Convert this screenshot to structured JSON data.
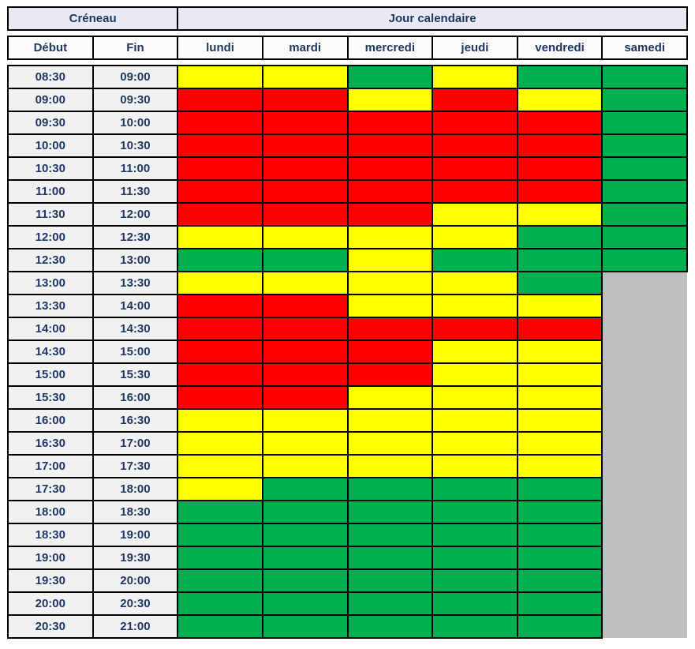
{
  "chart_data": {
    "type": "heatmap",
    "title": "Créneau / Jour calendaire availability grid",
    "header": {
      "creneau": "Créneau",
      "jour_calendaire": "Jour calendaire",
      "debut": "Début",
      "fin": "Fin"
    },
    "columns": [
      "lundi",
      "mardi",
      "mercredi",
      "jeudi",
      "vendredi",
      "samedi"
    ],
    "palette": {
      "red": "#FF0000",
      "yellow": "#FFFF00",
      "green": "#00B050",
      "gray": "#BFBFBF"
    },
    "rows": [
      {
        "debut": "08:30",
        "fin": "09:00",
        "cells": [
          "yellow",
          "yellow",
          "green",
          "yellow",
          "green",
          "green"
        ]
      },
      {
        "debut": "09:00",
        "fin": "09:30",
        "cells": [
          "red",
          "red",
          "yellow",
          "red",
          "yellow",
          "green"
        ]
      },
      {
        "debut": "09:30",
        "fin": "10:00",
        "cells": [
          "red",
          "red",
          "red",
          "red",
          "red",
          "green"
        ]
      },
      {
        "debut": "10:00",
        "fin": "10:30",
        "cells": [
          "red",
          "red",
          "red",
          "red",
          "red",
          "green"
        ]
      },
      {
        "debut": "10:30",
        "fin": "11:00",
        "cells": [
          "red",
          "red",
          "red",
          "red",
          "red",
          "green"
        ]
      },
      {
        "debut": "11:00",
        "fin": "11:30",
        "cells": [
          "red",
          "red",
          "red",
          "red",
          "red",
          "green"
        ]
      },
      {
        "debut": "11:30",
        "fin": "12:00",
        "cells": [
          "red",
          "red",
          "red",
          "yellow",
          "yellow",
          "green"
        ]
      },
      {
        "debut": "12:00",
        "fin": "12:30",
        "cells": [
          "yellow",
          "yellow",
          "yellow",
          "yellow",
          "green",
          "green"
        ]
      },
      {
        "debut": "12:30",
        "fin": "13:00",
        "cells": [
          "green",
          "green",
          "yellow",
          "green",
          "green",
          "green"
        ]
      },
      {
        "debut": "13:00",
        "fin": "13:30",
        "cells": [
          "yellow",
          "yellow",
          "yellow",
          "yellow",
          "green",
          "gray"
        ]
      },
      {
        "debut": "13:30",
        "fin": "14:00",
        "cells": [
          "red",
          "red",
          "yellow",
          "yellow",
          "yellow",
          "gray"
        ]
      },
      {
        "debut": "14:00",
        "fin": "14:30",
        "cells": [
          "red",
          "red",
          "red",
          "red",
          "red",
          "gray"
        ]
      },
      {
        "debut": "14:30",
        "fin": "15:00",
        "cells": [
          "red",
          "red",
          "red",
          "yellow",
          "yellow",
          "gray"
        ]
      },
      {
        "debut": "15:00",
        "fin": "15:30",
        "cells": [
          "red",
          "red",
          "red",
          "yellow",
          "yellow",
          "gray"
        ]
      },
      {
        "debut": "15:30",
        "fin": "16:00",
        "cells": [
          "red",
          "red",
          "yellow",
          "yellow",
          "yellow",
          "gray"
        ]
      },
      {
        "debut": "16:00",
        "fin": "16:30",
        "cells": [
          "yellow",
          "yellow",
          "yellow",
          "yellow",
          "yellow",
          "gray"
        ]
      },
      {
        "debut": "16:30",
        "fin": "17:00",
        "cells": [
          "yellow",
          "yellow",
          "yellow",
          "yellow",
          "yellow",
          "gray"
        ]
      },
      {
        "debut": "17:00",
        "fin": "17:30",
        "cells": [
          "yellow",
          "yellow",
          "yellow",
          "yellow",
          "yellow",
          "gray"
        ]
      },
      {
        "debut": "17:30",
        "fin": "18:00",
        "cells": [
          "yellow",
          "green",
          "green",
          "green",
          "green",
          "gray"
        ]
      },
      {
        "debut": "18:00",
        "fin": "18:30",
        "cells": [
          "green",
          "green",
          "green",
          "green",
          "green",
          "gray"
        ]
      },
      {
        "debut": "18:30",
        "fin": "19:00",
        "cells": [
          "green",
          "green",
          "green",
          "green",
          "green",
          "gray"
        ]
      },
      {
        "debut": "19:00",
        "fin": "19:30",
        "cells": [
          "green",
          "green",
          "green",
          "green",
          "green",
          "gray"
        ]
      },
      {
        "debut": "19:30",
        "fin": "20:00",
        "cells": [
          "green",
          "green",
          "green",
          "green",
          "green",
          "gray"
        ]
      },
      {
        "debut": "20:00",
        "fin": "20:30",
        "cells": [
          "green",
          "green",
          "green",
          "green",
          "green",
          "gray"
        ]
      },
      {
        "debut": "20:30",
        "fin": "21:00",
        "cells": [
          "green",
          "green",
          "green",
          "green",
          "green",
          "gray"
        ]
      }
    ]
  }
}
